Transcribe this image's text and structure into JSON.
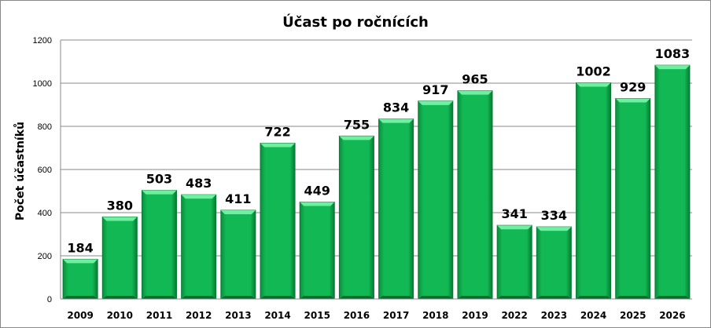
{
  "chart_data": {
    "type": "bar",
    "title": "Účast po ročnících",
    "xlabel": "",
    "ylabel": "Počet účastníků",
    "ylim": [
      0,
      1200
    ],
    "yticks": [
      0,
      200,
      400,
      600,
      800,
      1000,
      1200
    ],
    "grid": true,
    "legend": "none",
    "categories": [
      "2009",
      "2010",
      "2011",
      "2012",
      "2013",
      "2014",
      "2015",
      "2016",
      "2017",
      "2018",
      "2019",
      "2022",
      "2023",
      "2024",
      "2025",
      "2026"
    ],
    "values": [
      184,
      380,
      503,
      483,
      411,
      722,
      449,
      755,
      834,
      917,
      965,
      341,
      334,
      1002,
      929,
      1083
    ],
    "colors": {
      "bar": "#10b050",
      "bar_light": "#4fe08a",
      "bar_dark": "#067a32",
      "grid": "#888888"
    }
  }
}
